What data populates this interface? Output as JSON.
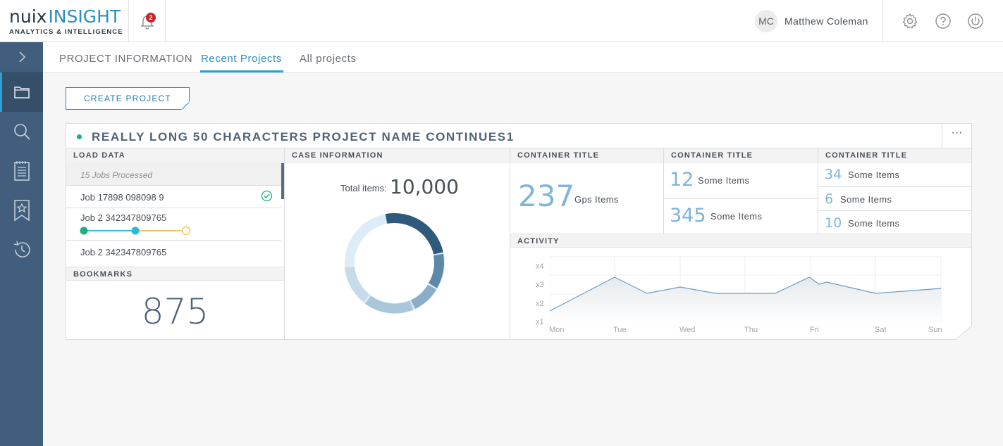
{
  "header": {
    "logo_main_1": "nuix",
    "logo_main_2": "INSIGHT",
    "logo_sub": "ANALYTICS & INTELLIGENCE",
    "notification_count": "2",
    "user_initials": "MC",
    "user_name": "Matthew Coleman",
    "icons": [
      "bell-icon",
      "gear-icon",
      "help-icon",
      "power-icon"
    ]
  },
  "sidebar": {
    "items": [
      "expand-chevron-icon",
      "folder-icon",
      "search-icon",
      "notepad-icon",
      "bookmark-star-icon",
      "history-icon"
    ],
    "active": "folder-icon"
  },
  "tabs": [
    {
      "label": "PROJECT INFORMATION"
    },
    {
      "label": "Recent Projects",
      "active": true
    },
    {
      "label": "All projects"
    }
  ],
  "create_button": "CREATE PROJECT",
  "project": {
    "name": "REALLY LONG 50 CHARACTERS PROJECT NAME CONTINUES1",
    "status_color": "#1fae7e",
    "more_label": "···"
  },
  "load_data": {
    "title": "LOAD DATA",
    "jobs_processed": "15 Jobs Processed",
    "jobs": [
      {
        "label": "Job 17898 098098 9",
        "status": "complete"
      },
      {
        "label": "Job 2 342347809765",
        "status": "in-progress"
      },
      {
        "label": "Job 2 342347809765",
        "status": ""
      }
    ]
  },
  "bookmarks": {
    "title": "BOOKMARKS",
    "count": "875"
  },
  "case_information": {
    "title": "CASE INFORMATION",
    "total_label": "Total items:",
    "total_value": "10,000"
  },
  "containers": [
    {
      "title": "CONTAINER TITLE",
      "items": [
        {
          "value": "237",
          "label": "Gps Items"
        }
      ]
    },
    {
      "title": "CONTAINER TITLE",
      "items": [
        {
          "value": "12",
          "label": "Some Items"
        },
        {
          "value": "345",
          "label": "Some Items"
        }
      ]
    },
    {
      "title": "CONTAINER TITLE",
      "items": [
        {
          "value": "34",
          "label": "Some Items"
        },
        {
          "value": "6",
          "label": "Some Items"
        },
        {
          "value": "10",
          "label": "Some Items"
        }
      ]
    }
  ],
  "activity": {
    "title": "ACTIVITY",
    "y_labels": [
      "x4",
      "x3",
      "x2",
      "x1"
    ],
    "x_labels": [
      "Mon",
      "Tue",
      "Wed",
      "Thu",
      "Fri",
      "Sat",
      "Sun"
    ]
  },
  "colors": {
    "accent": "#2aa3d4",
    "sidebar": "#415e7c",
    "title_text": "#4f6278",
    "success": "#1fae7e"
  }
}
